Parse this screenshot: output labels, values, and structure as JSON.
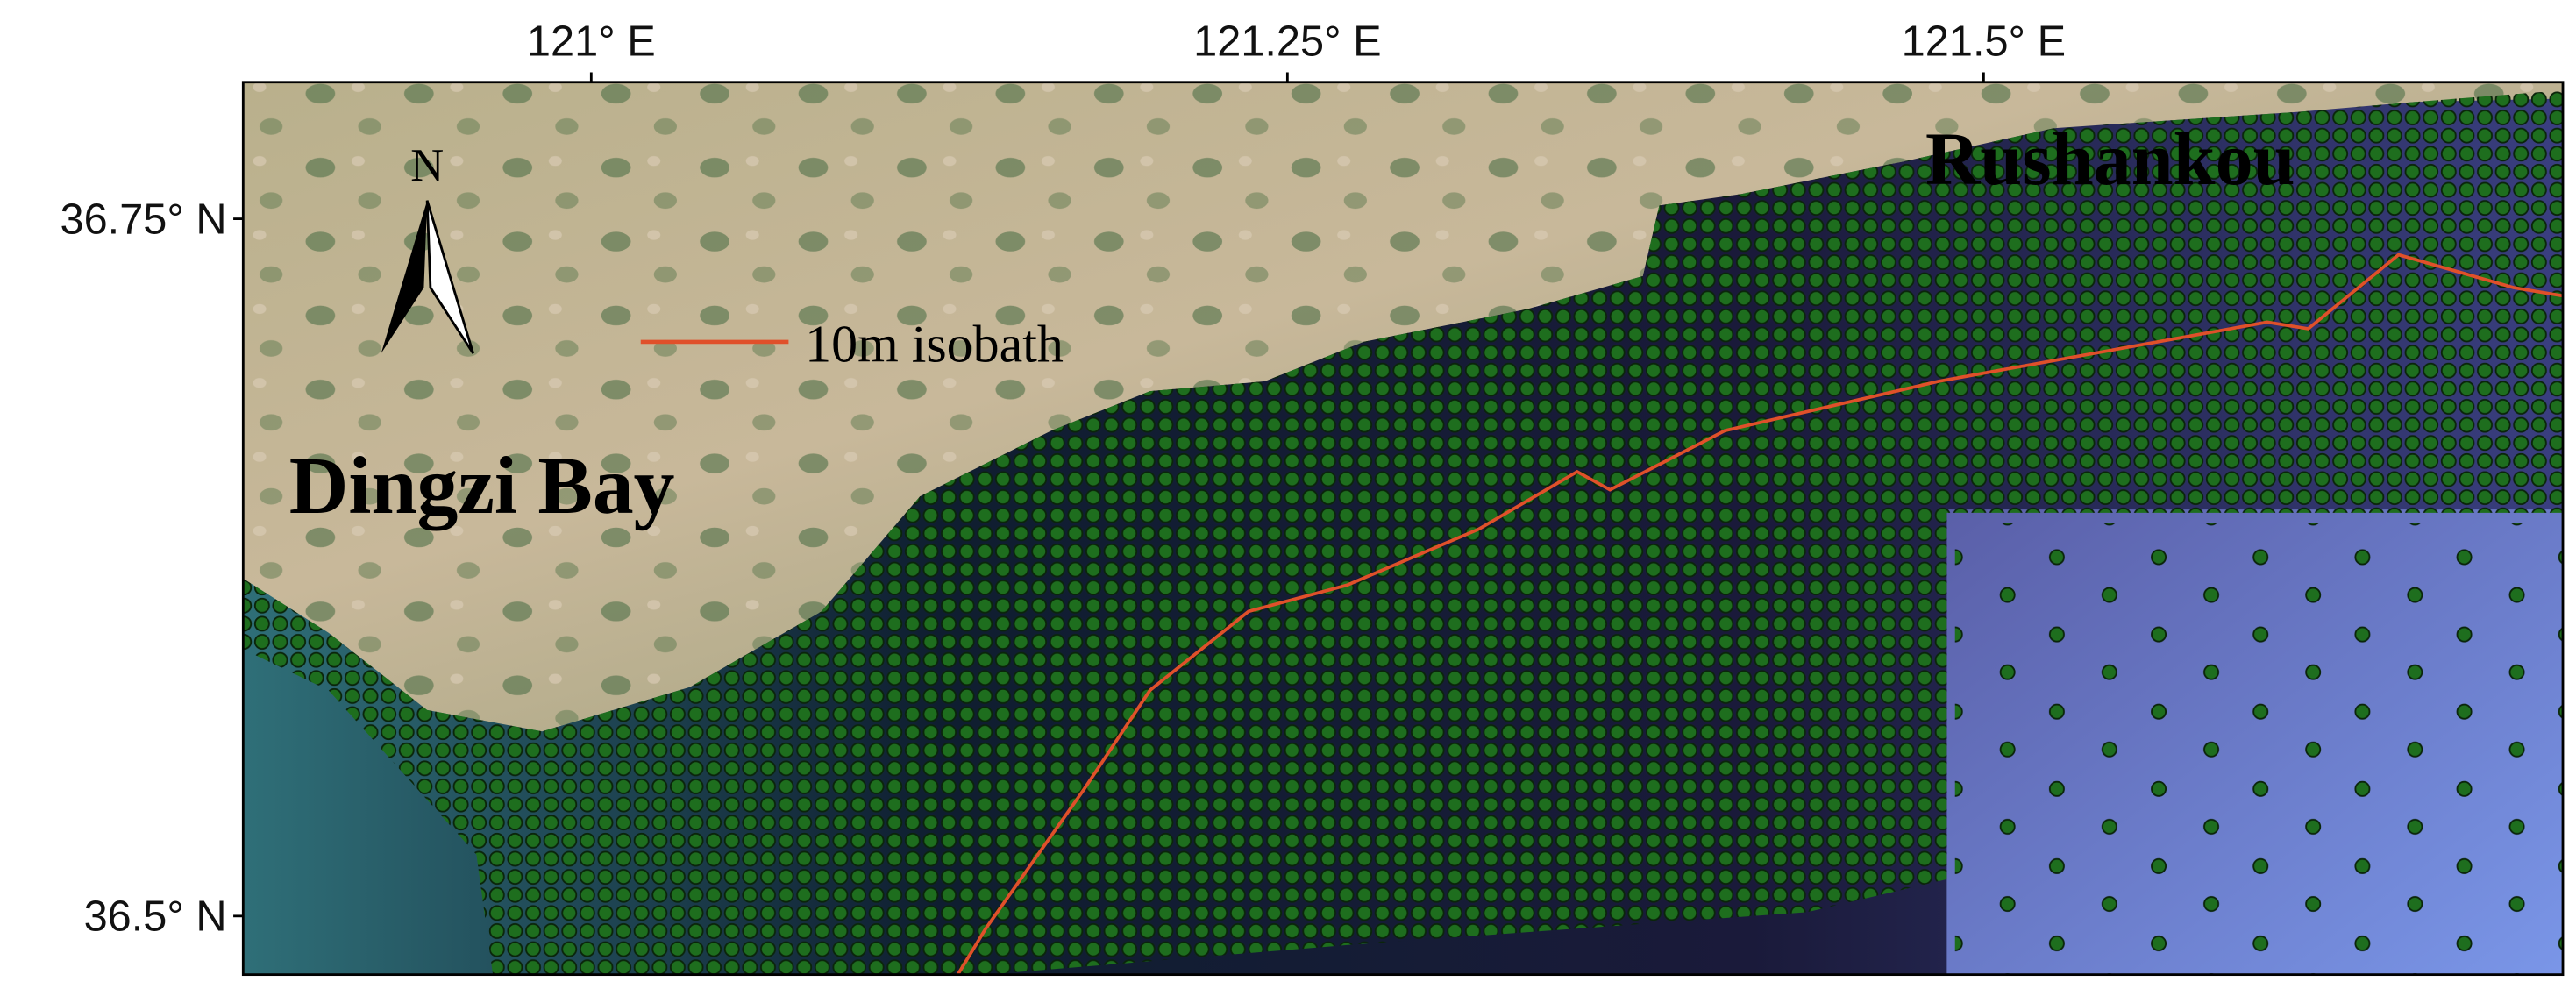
{
  "map": {
    "lon_range": [
      120.875,
      121.708
    ],
    "lat_range": [
      36.479,
      36.799
    ],
    "lon_ticks": [
      {
        "value": 121,
        "label": "121° E"
      },
      {
        "value": 121.25,
        "label": "121.25° E"
      },
      {
        "value": 121.5,
        "label": "121.5° E"
      }
    ],
    "lat_ticks": [
      {
        "value": 36.75,
        "label": "36.75° N"
      },
      {
        "value": 36.5,
        "label": "36.5° N"
      }
    ],
    "place_labels": [
      "Dingzi Bay",
      "Rushankou"
    ],
    "north_label": "N",
    "legend": {
      "label": "10m isobath",
      "color": "#e0502a"
    },
    "point_color": "#1e6e1e"
  }
}
